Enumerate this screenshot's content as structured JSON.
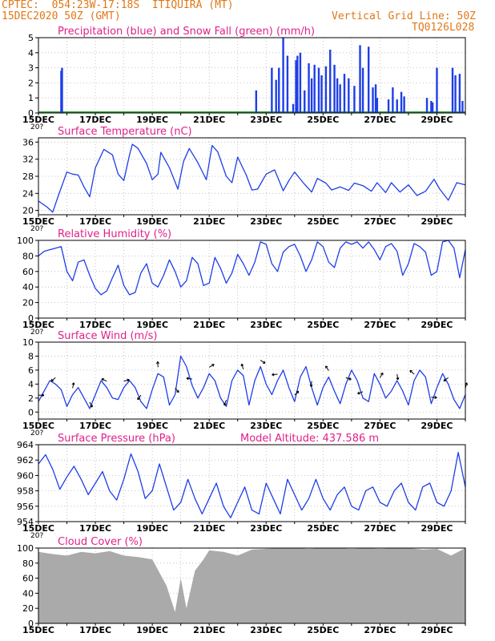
{
  "header": {
    "line1": "CPTEC:  054:23W-17:18S  ITIQUIRA (MT)",
    "line2": "15DEC2020 50Z (GMT)",
    "right1": "Vertical Grid Line: 50Z",
    "right2": "TQ0126L028",
    "colors": {
      "header": "#e07818",
      "title": "#e0208a",
      "line": "#1e3ee8",
      "wind_arrow": "#000000",
      "cloud": "#aaaaaa",
      "precip": "#1e3ee8",
      "snow": "#2aa02a"
    }
  },
  "x_tick_labels": [
    "15DEC",
    "17DEC",
    "19DEC",
    "21DEC",
    "23DEC",
    "25DEC",
    "27DEC",
    "29DEC"
  ],
  "x_cut_label": "20?",
  "chart_data": [
    {
      "type": "bar",
      "title": "Precipitation (blue) and Snow Fall (green) (mm/h)",
      "ylim": [
        0,
        5
      ],
      "yticks": [
        0,
        1,
        2,
        3,
        4,
        5
      ],
      "x_range_days": [
        0,
        15
      ],
      "series": [
        {
          "name": "Precipitation",
          "x": [
            0.8,
            0.83,
            7.65,
            8.2,
            8.35,
            8.45,
            8.6,
            8.75,
            8.95,
            9.05,
            9.1,
            9.2,
            9.35,
            9.5,
            9.6,
            9.7,
            9.85,
            9.95,
            10.1,
            10.25,
            10.4,
            10.5,
            10.6,
            10.75,
            10.9,
            11.1,
            11.3,
            11.4,
            11.6,
            11.75,
            11.85,
            11.9,
            12.3,
            12.45,
            12.6,
            12.75,
            12.85,
            13.65,
            13.8,
            13.85,
            14.0,
            14.55,
            14.65,
            14.8,
            14.9
          ],
          "values": [
            2.8,
            3.0,
            1.5,
            3.0,
            2.2,
            3.0,
            5.0,
            3.8,
            0.6,
            3.5,
            3.8,
            4.0,
            1.5,
            3.3,
            2.3,
            3.2,
            3.0,
            2.5,
            3.1,
            4.2,
            3.2,
            2.3,
            1.9,
            2.6,
            2.3,
            1.8,
            4.5,
            3.0,
            4.4,
            1.7,
            1.9,
            1.0,
            0.9,
            1.7,
            0.9,
            1.4,
            1.1,
            1.0,
            0.8,
            0.7,
            3.0,
            3.0,
            2.5,
            2.6,
            0.8
          ]
        },
        {
          "name": "Snow Fall",
          "x": [],
          "values": []
        }
      ]
    },
    {
      "type": "line",
      "title": "Surface Temperature (nC)",
      "ylim": [
        19,
        37
      ],
      "yticks": [
        20,
        24,
        28,
        32,
        36
      ],
      "x": [
        0,
        0.3,
        0.5,
        0.7,
        1.0,
        1.2,
        1.4,
        1.6,
        1.8,
        2.0,
        2.3,
        2.6,
        2.8,
        3.0,
        3.2,
        3.3,
        3.5,
        3.8,
        4.0,
        4.2,
        4.3,
        4.6,
        4.9,
        5.1,
        5.3,
        5.6,
        5.9,
        6.1,
        6.3,
        6.6,
        6.8,
        7.0,
        7.3,
        7.5,
        7.7,
        8.0,
        8.3,
        8.6,
        8.8,
        9.0,
        9.3,
        9.6,
        9.8,
        10.1,
        10.3,
        10.6,
        10.9,
        11.1,
        11.4,
        11.7,
        11.9,
        12.2,
        12.4,
        12.7,
        13.0,
        13.3,
        13.6,
        13.9,
        14.1,
        14.4,
        14.7,
        15.0
      ],
      "values": [
        22.2,
        20.8,
        19.6,
        23.5,
        29.0,
        28.5,
        28.3,
        25.5,
        23.2,
        30.0,
        34.3,
        33.0,
        28.5,
        27.0,
        33.0,
        35.5,
        34.5,
        31.0,
        27.2,
        28.5,
        33.6,
        30.0,
        25.0,
        31.5,
        34.5,
        31.2,
        27.2,
        35.2,
        33.7,
        28.0,
        26.5,
        32.5,
        28.3,
        24.8,
        25.0,
        28.5,
        29.5,
        24.6,
        27.0,
        29.0,
        26.5,
        24.3,
        27.5,
        26.4,
        24.8,
        25.5,
        24.7,
        26.4,
        25.8,
        24.5,
        26.5,
        24.2,
        26.5,
        24.3,
        26.0,
        23.5,
        24.5,
        27.3,
        25.0,
        22.4,
        26.5,
        26.0
      ]
    },
    {
      "type": "line",
      "title": "Relative Humidity (%)",
      "ylim": [
        0,
        100
      ],
      "yticks": [
        0,
        20,
        40,
        60,
        80,
        100
      ],
      "x": [
        0,
        0.2,
        0.4,
        0.6,
        0.8,
        1.0,
        1.2,
        1.4,
        1.6,
        1.8,
        2.0,
        2.2,
        2.4,
        2.6,
        2.8,
        3.0,
        3.2,
        3.4,
        3.6,
        3.8,
        4.0,
        4.2,
        4.4,
        4.6,
        4.8,
        5.0,
        5.2,
        5.4,
        5.6,
        5.8,
        6.0,
        6.2,
        6.4,
        6.6,
        6.8,
        7.0,
        7.2,
        7.4,
        7.6,
        7.8,
        8.0,
        8.2,
        8.4,
        8.6,
        8.8,
        9.0,
        9.2,
        9.4,
        9.6,
        9.8,
        10.0,
        10.2,
        10.4,
        10.6,
        10.8,
        11.0,
        11.2,
        11.4,
        11.6,
        11.8,
        12.0,
        12.2,
        12.4,
        12.6,
        12.8,
        13.0,
        13.2,
        13.4,
        13.6,
        13.8,
        14.0,
        14.2,
        14.4,
        14.6,
        14.8,
        15.0
      ],
      "values": [
        80,
        86,
        88,
        90,
        92,
        60,
        48,
        72,
        75,
        55,
        38,
        30,
        35,
        52,
        68,
        42,
        30,
        33,
        58,
        70,
        45,
        40,
        55,
        75,
        60,
        40,
        48,
        78,
        70,
        42,
        45,
        78,
        64,
        45,
        58,
        82,
        70,
        55,
        72,
        98,
        95,
        70,
        60,
        85,
        92,
        95,
        80,
        60,
        75,
        98,
        92,
        72,
        65,
        90,
        98,
        95,
        98,
        90,
        98,
        88,
        75,
        92,
        96,
        86,
        55,
        70,
        96,
        92,
        85,
        55,
        60,
        98,
        100,
        90,
        52,
        88
      ]
    },
    {
      "type": "line",
      "title": "Surface Wind (m/s)",
      "ylim": [
        -1,
        10
      ],
      "yticks": [
        0,
        2,
        4,
        6,
        8,
        10
      ],
      "x": [
        0,
        0.2,
        0.4,
        0.6,
        0.8,
        1.0,
        1.2,
        1.4,
        1.6,
        1.8,
        2.0,
        2.2,
        2.4,
        2.6,
        2.8,
        3.0,
        3.2,
        3.4,
        3.6,
        3.8,
        4.0,
        4.2,
        4.4,
        4.6,
        4.8,
        5.0,
        5.2,
        5.4,
        5.6,
        5.8,
        6.0,
        6.2,
        6.4,
        6.6,
        6.8,
        7.0,
        7.2,
        7.4,
        7.6,
        7.8,
        8.0,
        8.2,
        8.4,
        8.6,
        8.8,
        9.0,
        9.2,
        9.4,
        9.6,
        9.8,
        10.0,
        10.2,
        10.4,
        10.6,
        10.8,
        11.0,
        11.2,
        11.4,
        11.6,
        11.8,
        12.0,
        12.2,
        12.4,
        12.6,
        12.8,
        13.0,
        13.2,
        13.4,
        13.6,
        13.8,
        14.0,
        14.2,
        14.4,
        14.6,
        14.8,
        15.0
      ],
      "values": [
        1.5,
        3.0,
        4.5,
        4.0,
        3.2,
        0.8,
        2.5,
        3.5,
        2.0,
        0.5,
        2.5,
        4.5,
        3.5,
        2.0,
        1.8,
        3.5,
        4.5,
        3.5,
        1.5,
        0.5,
        3.2,
        5.5,
        5.0,
        1.0,
        2.5,
        8.0,
        6.5,
        3.8,
        2.0,
        3.5,
        5.5,
        4.5,
        2.0,
        0.8,
        4.5,
        6.0,
        5.2,
        1.0,
        4.5,
        6.5,
        4.0,
        2.5,
        4.5,
        6.0,
        3.5,
        1.5,
        5.0,
        6.5,
        3.5,
        1.0,
        3.5,
        5.0,
        3.0,
        1.2,
        4.0,
        6.0,
        4.5,
        2.0,
        1.5,
        5.5,
        4.0,
        2.0,
        3.0,
        4.5,
        3.0,
        1.0,
        4.5,
        6.0,
        5.0,
        1.2,
        3.5,
        5.5,
        4.0,
        1.8,
        0.5,
        2.5
      ]
    },
    {
      "type": "line",
      "title": "Surface Pressure (hPa)",
      "subtitle": "Model Altitude: 437.586  m",
      "ylim": [
        954,
        964
      ],
      "yticks": [
        954,
        956,
        958,
        960,
        962,
        964
      ],
      "x": [
        0,
        0.25,
        0.5,
        0.75,
        1.0,
        1.25,
        1.5,
        1.75,
        2.0,
        2.25,
        2.5,
        2.75,
        3.0,
        3.25,
        3.5,
        3.75,
        4.0,
        4.25,
        4.5,
        4.75,
        5.0,
        5.25,
        5.5,
        5.75,
        6.0,
        6.25,
        6.5,
        6.75,
        7.0,
        7.25,
        7.5,
        7.75,
        8.0,
        8.25,
        8.5,
        8.75,
        9.0,
        9.25,
        9.5,
        9.75,
        10.0,
        10.25,
        10.5,
        10.75,
        11.0,
        11.25,
        11.5,
        11.75,
        12.0,
        12.25,
        12.5,
        12.75,
        13.0,
        13.25,
        13.5,
        13.75,
        14.0,
        14.25,
        14.5,
        14.75,
        15.0
      ],
      "values": [
        961.5,
        962.7,
        960.8,
        958.2,
        959.8,
        961.2,
        959.5,
        957.5,
        959.0,
        960.5,
        958.0,
        956.8,
        959.5,
        962.8,
        960.5,
        957.0,
        958.0,
        961.5,
        958.5,
        955.5,
        956.5,
        959.5,
        957.0,
        955.0,
        957.0,
        959.0,
        956.0,
        954.5,
        956.5,
        958.5,
        955.5,
        955.0,
        959.0,
        957.0,
        955.0,
        959.5,
        957.5,
        955.5,
        957.0,
        959.5,
        957.0,
        955.5,
        957.5,
        958.5,
        956.0,
        955.5,
        958.0,
        958.5,
        956.5,
        956.0,
        958.0,
        959.0,
        956.5,
        955.5,
        958.5,
        959.0,
        956.5,
        956.0,
        958.0,
        963.0,
        958.5
      ]
    },
    {
      "type": "area",
      "title": "Cloud Cover (%)",
      "ylim": [
        0,
        100
      ],
      "yticks": [
        0,
        20,
        40,
        60,
        80,
        100
      ],
      "x": [
        0,
        0.5,
        1.0,
        1.5,
        2.0,
        2.5,
        3.0,
        3.5,
        4.0,
        4.5,
        4.8,
        5.0,
        5.2,
        5.5,
        5.8,
        6.0,
        6.5,
        7.0,
        7.5,
        8.0,
        8.5,
        9.0,
        9.5,
        10.0,
        10.5,
        11.0,
        11.5,
        12.0,
        12.5,
        13.0,
        13.5,
        14.0,
        14.5,
        15.0
      ],
      "values": [
        95,
        92,
        90,
        95,
        93,
        96,
        90,
        88,
        85,
        50,
        15,
        60,
        20,
        70,
        85,
        97,
        95,
        90,
        98,
        99,
        100,
        100,
        99,
        100,
        100,
        99,
        100,
        99,
        100,
        100,
        98,
        99,
        90,
        100
      ]
    }
  ]
}
